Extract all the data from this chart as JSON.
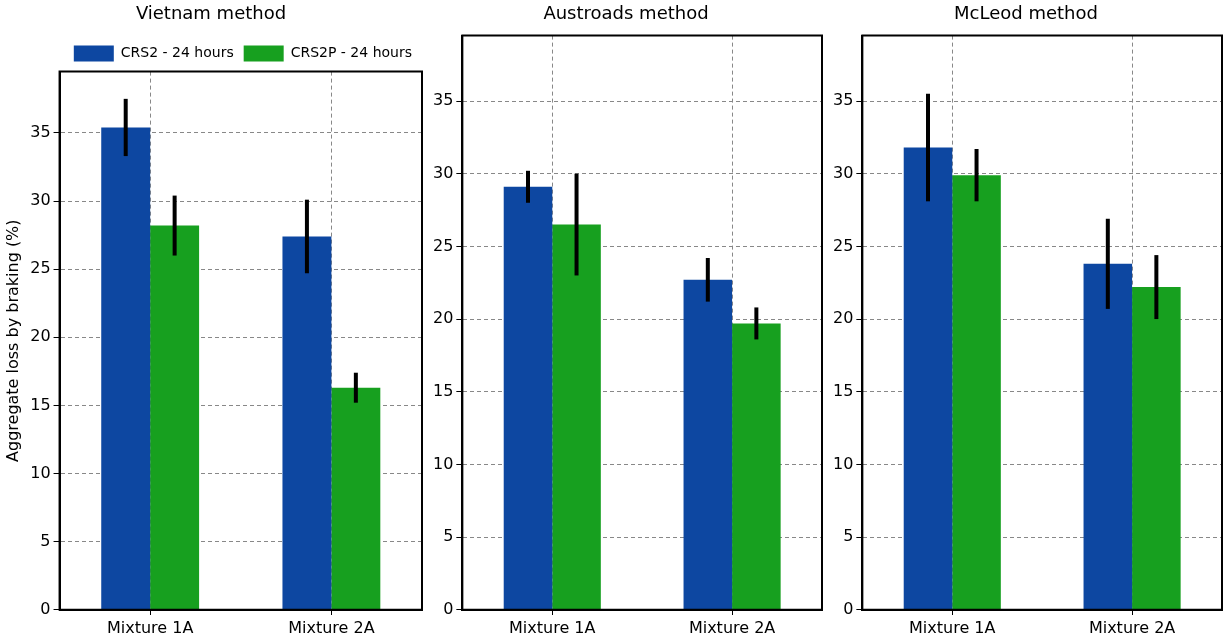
{
  "chart_data": [
    {
      "type": "bar",
      "title": "Vietnam method",
      "ylabel": "Aggregate loss by braking (%)",
      "categories": [
        "Mixture 1A",
        "Mixture 2A"
      ],
      "ylim": [
        0,
        39.5
      ],
      "yticks": [
        0,
        5,
        10,
        15,
        20,
        25,
        30,
        35
      ],
      "grid": true,
      "legend": "top right",
      "series": [
        {
          "name": "CRS2 - 24 hours",
          "color": "#0d47a1",
          "values": [
            35.4,
            27.4
          ],
          "errors": [
            2.1,
            2.7
          ]
        },
        {
          "name": "CRS2P - 24 hours",
          "color": "#17a01f",
          "values": [
            28.2,
            16.3
          ],
          "errors": [
            2.2,
            1.1
          ]
        }
      ]
    },
    {
      "type": "bar",
      "title": "Austroads method",
      "categories": [
        "Mixture 1A",
        "Mixture 2A"
      ],
      "ylim": [
        0,
        39.5
      ],
      "yticks": [
        0,
        5,
        10,
        15,
        20,
        25,
        30,
        35
      ],
      "grid": true,
      "series": [
        {
          "color": "#0d47a1",
          "values": [
            29.1,
            22.7
          ],
          "errors": [
            1.1,
            1.5
          ]
        },
        {
          "color": "#17a01f",
          "values": [
            26.5,
            19.7
          ],
          "errors": [
            3.5,
            1.1
          ]
        }
      ]
    },
    {
      "type": "bar",
      "title": "McLeod method",
      "categories": [
        "Mixture 1A",
        "Mixture 2A"
      ],
      "ylim": [
        0,
        39.5
      ],
      "yticks": [
        0,
        5,
        10,
        15,
        20,
        25,
        30,
        35
      ],
      "grid": true,
      "series": [
        {
          "color": "#0d47a1",
          "values": [
            31.8,
            23.8
          ],
          "errors": [
            3.7,
            3.1
          ]
        },
        {
          "color": "#17a01f",
          "values": [
            29.9,
            22.2
          ],
          "errors": [
            1.8,
            2.2
          ]
        }
      ]
    }
  ]
}
